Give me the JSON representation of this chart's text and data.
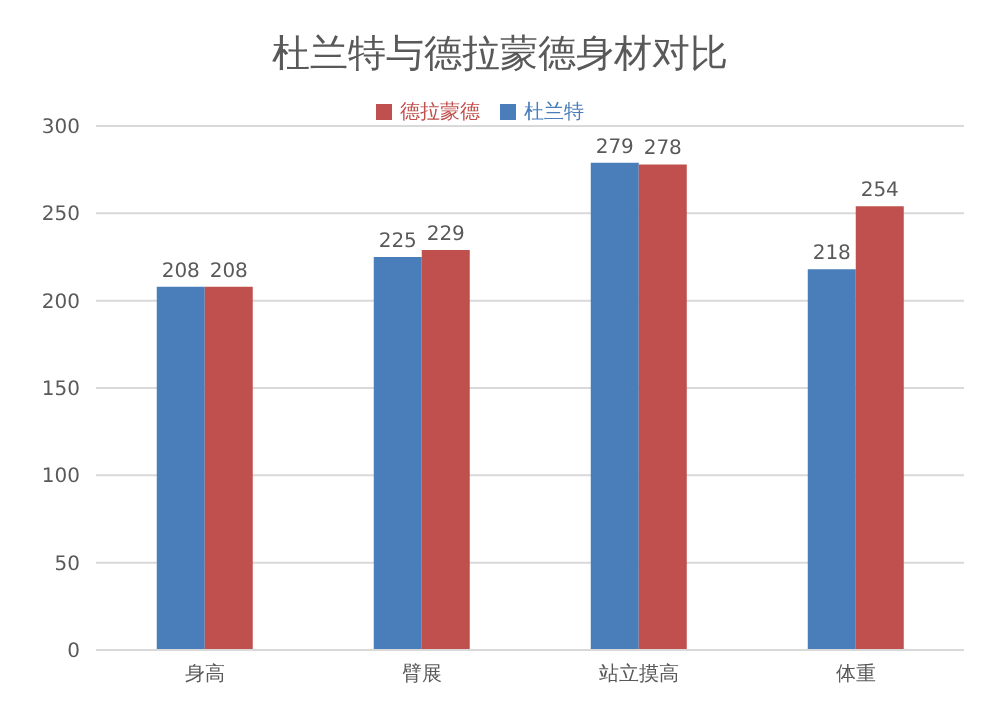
{
  "chart_data": {
    "type": "bar",
    "title": "杜兰特与德拉蒙德身材对比",
    "categories": [
      "身高",
      "臂展",
      "站立摸高",
      "体重"
    ],
    "series": [
      {
        "name": "杜兰特",
        "color": "#4a7ebb",
        "values": [
          208,
          225,
          279,
          218
        ]
      },
      {
        "name": "德拉蒙德",
        "color": "#c0504d",
        "values": [
          208,
          229,
          278,
          254
        ]
      }
    ],
    "ylim": [
      0,
      300
    ],
    "yticks": [
      0,
      50,
      100,
      150,
      200,
      250,
      300
    ],
    "grid": "y",
    "legend": "top",
    "data_labels": true
  }
}
